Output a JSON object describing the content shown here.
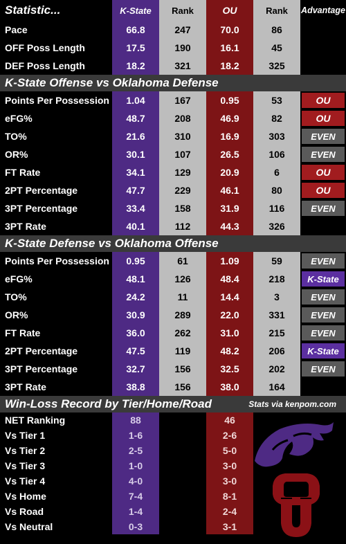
{
  "header": {
    "statistic": "Statistic...",
    "team1": "K-State",
    "rank1": "Rank",
    "team2": "OU",
    "rank2": "Rank",
    "advantage": "Advantage"
  },
  "overview": [
    {
      "label": "Pace",
      "ks": "66.8",
      "ks_rank": "247",
      "ou": "70.0",
      "ou_rank": "86"
    },
    {
      "label": "OFF Poss Length",
      "ks": "17.5",
      "ks_rank": "190",
      "ou": "16.1",
      "ou_rank": "45"
    },
    {
      "label": "DEF Poss Length",
      "ks": "18.2",
      "ks_rank": "321",
      "ou": "18.2",
      "ou_rank": "325"
    }
  ],
  "section1": {
    "title": "K-State Offense vs Oklahoma Defense"
  },
  "offense": [
    {
      "label": "Points Per Possession",
      "ks": "1.04",
      "ks_rank": "167",
      "ou": "0.95",
      "ou_rank": "53",
      "adv": "OU",
      "adv_type": "ou"
    },
    {
      "label": "eFG%",
      "ks": "48.7",
      "ks_rank": "208",
      "ou": "46.9",
      "ou_rank": "82",
      "adv": "OU",
      "adv_type": "ou"
    },
    {
      "label": "TO%",
      "ks": "21.6",
      "ks_rank": "310",
      "ou": "16.9",
      "ou_rank": "303",
      "adv": "EVEN",
      "adv_type": "even"
    },
    {
      "label": "OR%",
      "ks": "30.1",
      "ks_rank": "107",
      "ou": "26.5",
      "ou_rank": "106",
      "adv": "EVEN",
      "adv_type": "even"
    },
    {
      "label": "FT Rate",
      "ks": "34.1",
      "ks_rank": "129",
      "ou": "20.9",
      "ou_rank": "6",
      "adv": "OU",
      "adv_type": "ou"
    },
    {
      "label": "2PT Percentage",
      "ks": "47.7",
      "ks_rank": "229",
      "ou": "46.1",
      "ou_rank": "80",
      "adv": "OU",
      "adv_type": "ou"
    },
    {
      "label": "3PT Percentage",
      "ks": "33.4",
      "ks_rank": "158",
      "ou": "31.9",
      "ou_rank": "116",
      "adv": "EVEN",
      "adv_type": "even"
    },
    {
      "label": "3PT Rate",
      "ks": "40.1",
      "ks_rank": "112",
      "ou": "44.3",
      "ou_rank": "326",
      "adv": "",
      "adv_type": "none"
    }
  ],
  "section2": {
    "title": "K-State Defense vs Oklahoma Offense"
  },
  "defense": [
    {
      "label": "Points Per Possession",
      "ks": "0.95",
      "ks_rank": "61",
      "ou": "1.09",
      "ou_rank": "59",
      "adv": "EVEN",
      "adv_type": "even"
    },
    {
      "label": "eFG%",
      "ks": "48.1",
      "ks_rank": "126",
      "ou": "48.4",
      "ou_rank": "218",
      "adv": "K-State",
      "adv_type": "ks"
    },
    {
      "label": "TO%",
      "ks": "24.2",
      "ks_rank": "11",
      "ou": "14.4",
      "ou_rank": "3",
      "adv": "EVEN",
      "adv_type": "even"
    },
    {
      "label": "OR%",
      "ks": "30.9",
      "ks_rank": "289",
      "ou": "22.0",
      "ou_rank": "331",
      "adv": "EVEN",
      "adv_type": "even"
    },
    {
      "label": "FT Rate",
      "ks": "36.0",
      "ks_rank": "262",
      "ou": "31.0",
      "ou_rank": "215",
      "adv": "EVEN",
      "adv_type": "even"
    },
    {
      "label": "2PT Percentage",
      "ks": "47.5",
      "ks_rank": "119",
      "ou": "48.2",
      "ou_rank": "206",
      "adv": "K-State",
      "adv_type": "ks"
    },
    {
      "label": "3PT Percentage",
      "ks": "32.7",
      "ks_rank": "156",
      "ou": "32.5",
      "ou_rank": "202",
      "adv": "EVEN",
      "adv_type": "even"
    },
    {
      "label": "3PT Rate",
      "ks": "38.8",
      "ks_rank": "156",
      "ou": "38.0",
      "ou_rank": "164",
      "adv": "",
      "adv_type": "none"
    }
  ],
  "section3": {
    "title": "Win-Loss Record by Tier/Home/Road",
    "note": "Stats via kenpom.com"
  },
  "records": [
    {
      "label": "NET Ranking",
      "ks": "88",
      "ou": "46"
    },
    {
      "label": "Vs Tier 1",
      "ks": "1-6",
      "ou": "2-6"
    },
    {
      "label": "Vs Tier 2",
      "ks": "2-5",
      "ou": "5-0"
    },
    {
      "label": "Vs Tier 3",
      "ks": "1-0",
      "ou": "3-0"
    },
    {
      "label": "Vs Tier 4",
      "ks": "4-0",
      "ou": "3-0"
    },
    {
      "label": "Vs Home",
      "ks": "7-4",
      "ou": "8-1"
    },
    {
      "label": "Vs Road",
      "ks": "1-4",
      "ou": "2-4"
    },
    {
      "label": "Vs Neutral",
      "ks": "0-3",
      "ou": "3-1"
    }
  ],
  "logos": {
    "kstate": "powercat-logo",
    "ou": "ou-interlocking-logo"
  },
  "colors": {
    "kstate": "#4e2a84",
    "ou": "#7d1416",
    "rank": "#bdbdbd",
    "even": "#5a5a5a"
  }
}
